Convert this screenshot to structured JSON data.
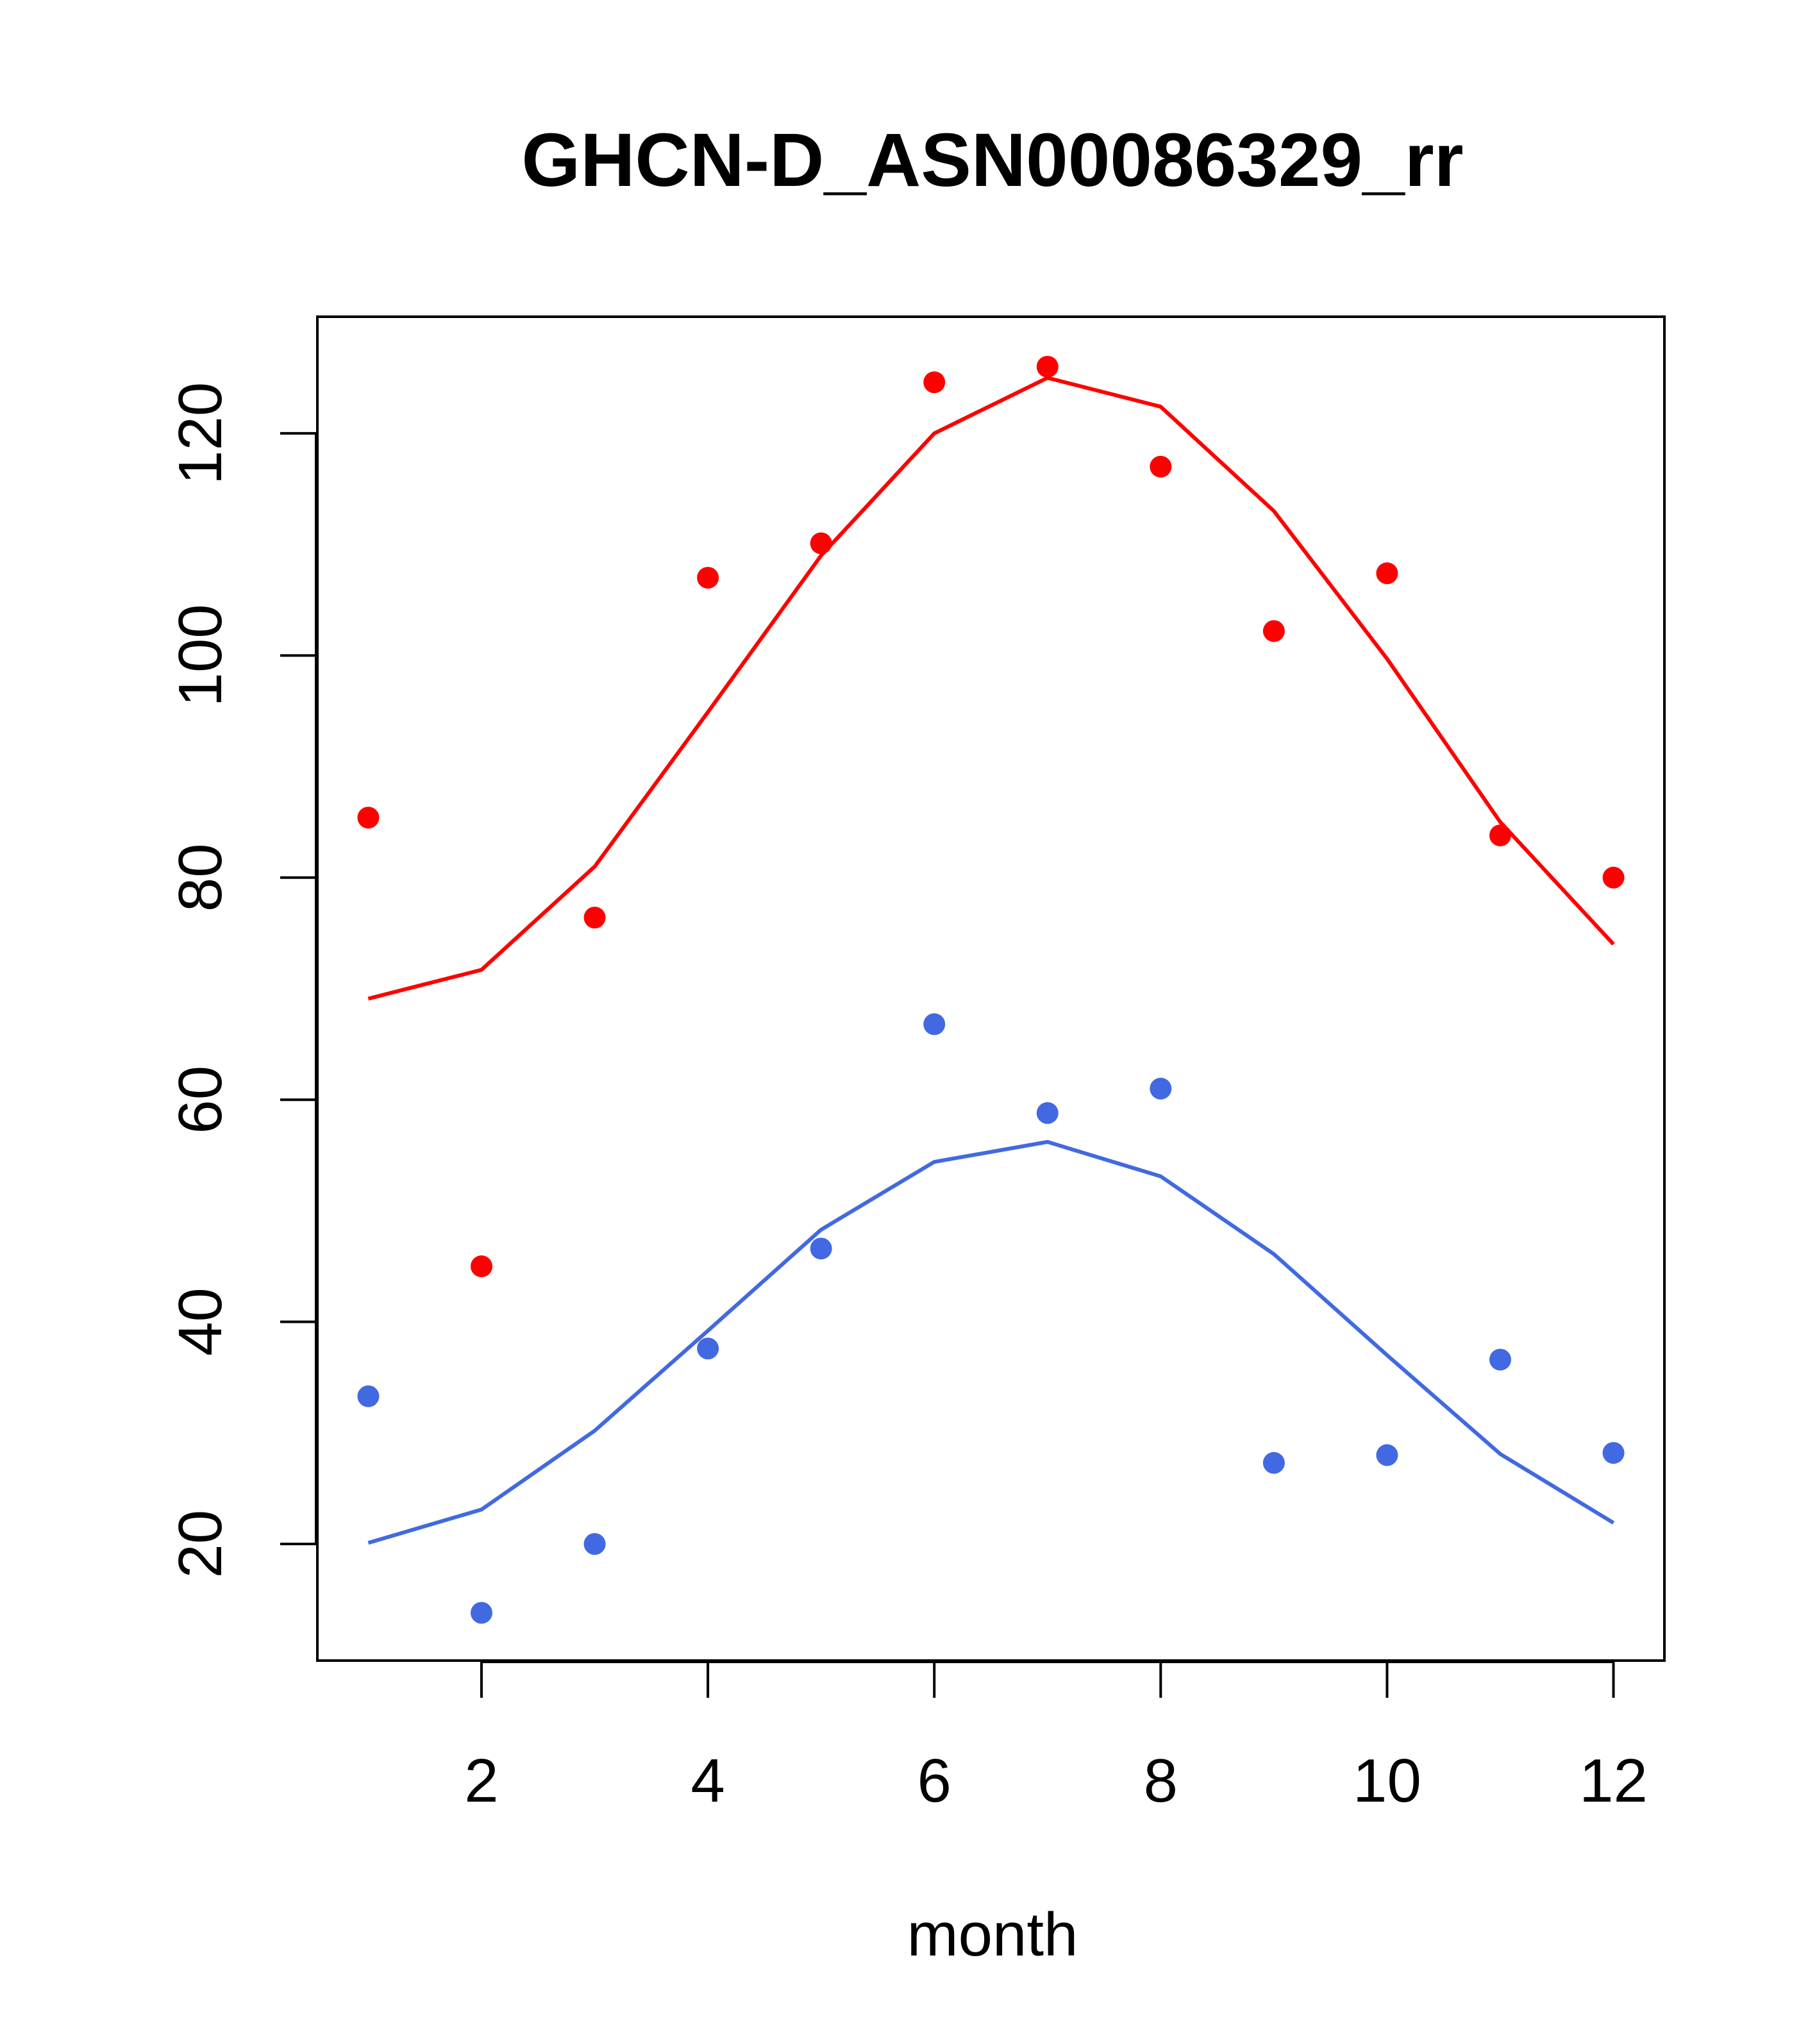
{
  "chart_data": {
    "type": "scatter",
    "title": "GHCN-D_ASN00086329_rr",
    "xlabel": "month",
    "ylabel": "",
    "xlim": [
      0.55,
      12.45
    ],
    "ylim": [
      9.5,
      130.5
    ],
    "x_ticks": [
      2,
      4,
      6,
      8,
      10,
      12
    ],
    "y_ticks": [
      20,
      40,
      60,
      80,
      100,
      120
    ],
    "x_tick_labels": [
      "2",
      "4",
      "6",
      "8",
      "10",
      "12"
    ],
    "y_tick_labels": [
      "20",
      "40",
      "60",
      "80",
      "100",
      "120"
    ],
    "grid": false,
    "x": [
      1,
      2,
      3,
      4,
      5,
      6,
      7,
      8,
      9,
      10,
      11,
      12
    ],
    "series": [
      {
        "color": "#ff0000",
        "points": [
          85.4,
          45.0,
          76.4,
          107.0,
          110.1,
          124.6,
          126.0,
          117.0,
          102.2,
          107.4,
          83.8,
          80.0
        ],
        "line": [
          69.1,
          71.7,
          81.0,
          94.9,
          109.0,
          120.0,
          125.0,
          122.4,
          113.0,
          99.7,
          85.0,
          74.0
        ]
      },
      {
        "color": "#4169e1",
        "points": [
          33.3,
          13.8,
          20.0,
          37.6,
          46.6,
          66.8,
          58.8,
          61.0,
          27.3,
          28.0,
          36.6,
          28.2
        ],
        "line": [
          20.1,
          23.1,
          30.2,
          39.2,
          48.3,
          54.4,
          56.2,
          53.1,
          46.1,
          37.0,
          28.1,
          21.9
        ]
      }
    ]
  }
}
